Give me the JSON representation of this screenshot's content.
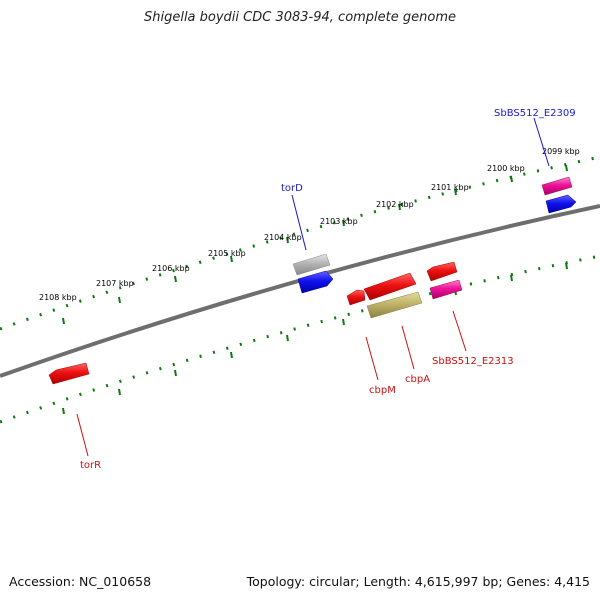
{
  "title": "Shigella boydii CDC 3083-94, complete genome",
  "footer": {
    "accession": "Accession: NC_010658",
    "summary": "Topology: circular; Length: 4,615,997 bp; Genes: 4,415"
  },
  "kbp_labels": [
    "2099 kbp",
    "2100 kbp",
    "2101 kbp",
    "2102 kbp",
    "2103 kbp",
    "2104 kbp",
    "2105 kbp",
    "2106 kbp",
    "2107 kbp",
    "2108 kbp"
  ],
  "genes": [
    {
      "name": "SbBS512_E2309",
      "color": "#1a1acc"
    },
    {
      "name": "torD",
      "color": "#1a1acc"
    },
    {
      "name": "torR",
      "color": "#cc1111"
    },
    {
      "name": "cbpM",
      "color": "#cc1111"
    },
    {
      "name": "cbpA",
      "color": "#cc1111"
    },
    {
      "name": "SbBS512_E2313",
      "color": "#cc1111"
    }
  ],
  "colors": {
    "backbone": "#777777",
    "tick": "#117711",
    "red": "#ee1111",
    "blue": "#1111ee",
    "magenta": "#ee1199",
    "gray": "#aaaaaa",
    "olive": "#bbb066"
  }
}
